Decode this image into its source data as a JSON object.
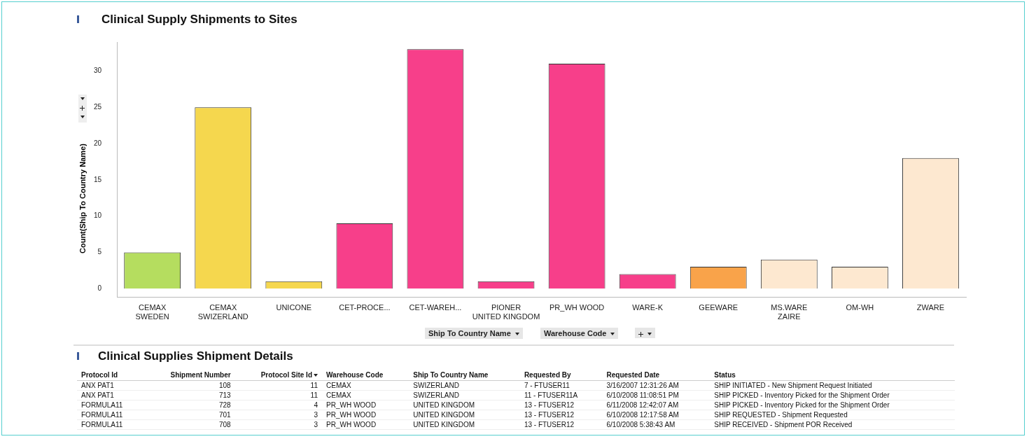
{
  "chart_data": [
    {
      "type": "bar",
      "title": "Clinical Supply Shipments to Sites",
      "ylabel": "Count(Ship To Country Name)",
      "xlabel": "Ship To Country Name",
      "categories": [
        "CEMAX\nSWEDEN",
        "CEMAX\nSWIZERLAND",
        "UNICONE",
        "CET-PROCE...",
        "CET-WAREH...",
        "PIONER\nUNITED KINGDOM",
        "PR_WH WOOD",
        "WARE-K",
        "GEEWARE",
        "MS.WARE\nZAIRE",
        "OM-WH",
        "ZWARE"
      ],
      "values": [
        5,
        25,
        1,
        9,
        33,
        1,
        31,
        2,
        3,
        4,
        3,
        18
      ],
      "colors": [
        "#b5dd5f",
        "#f5d74e",
        "#f5d74e",
        "#f73f8a",
        "#f73f8a",
        "#f73f8a",
        "#f73f8a",
        "#f73f8a",
        "#f9a34a",
        "#fde8d0",
        "#fde8d0",
        "#fde8d0"
      ],
      "ylim": [
        -1.2,
        34
      ],
      "yticks": [
        0,
        5,
        10,
        15,
        20,
        25,
        30
      ],
      "grid": false,
      "legend": false,
      "annotations": [
        "Warehouse Code"
      ]
    },
    {
      "type": "other",
      "title": "Clinical Supplies Shipment Details",
      "categories": [
        "Protocol Id",
        "Shipment Number",
        "Protocol Site Id",
        "Warehouse Code",
        "Ship To Country Name",
        "Requested By",
        "Requested Date",
        "Status"
      ],
      "annotations": [
        "ANX PAT1",
        "108",
        "11",
        "CEMAX",
        "SWIZERLAND",
        "7 - FTUSER11",
        "3/16/2007 12:31:26 AM",
        "SHIP INITIATED - New Shipment Request Initiated",
        "ANX PAT1",
        "713",
        "11",
        "CEMAX",
        "SWIZERLAND",
        "11 - FTUSER11A",
        "6/10/2008 11:08:51 PM",
        "SHIP PICKED - Inventory Picked for the Shipment Order",
        "FORMULA11",
        "728",
        "4",
        "PR_WH WOOD",
        "UNITED KINGDOM",
        "13 - FTUSER12",
        "6/11/2008 12:42:07 AM",
        "SHIP PICKED - Inventory Picked for the Shipment Order",
        "FORMULA11",
        "701",
        "3",
        "PR_WH WOOD",
        "UNITED KINGDOM",
        "13 - FTUSER12",
        "6/10/2008 12:17:58 AM",
        "SHIP REQUESTED - Shipment Requested",
        "FORMULA11",
        "708",
        "3",
        "PR_WH WOOD",
        "UNITED KINGDOM",
        "13 - FTUSER12",
        "6/10/2008 5:38:43 AM",
        "SHIP RECEIVED - Shipment POR Received"
      ]
    }
  ]
}
